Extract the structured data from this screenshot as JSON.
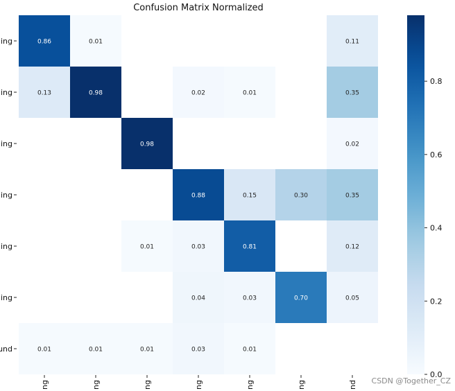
{
  "chart_data": {
    "type": "heatmap",
    "title": "Confusion Matrix Normalized",
    "row_labels": [
      "ing",
      "ing",
      "ing",
      "ing",
      "ing",
      "ing",
      "und"
    ],
    "col_labels": [
      "ng",
      "ng",
      "ng",
      "ng",
      "ng",
      "ng",
      "nd"
    ],
    "values": [
      [
        0.86,
        0.01,
        null,
        null,
        null,
        null,
        0.11
      ],
      [
        0.13,
        0.98,
        null,
        0.02,
        0.01,
        null,
        0.35
      ],
      [
        null,
        null,
        0.98,
        null,
        null,
        null,
        0.02
      ],
      [
        null,
        null,
        null,
        0.88,
        0.15,
        0.3,
        0.35
      ],
      [
        null,
        null,
        0.01,
        0.03,
        0.81,
        null,
        0.12
      ],
      [
        null,
        null,
        null,
        0.04,
        0.03,
        0.7,
        0.05
      ],
      [
        0.01,
        0.01,
        0.01,
        0.03,
        0.01,
        null,
        null
      ]
    ],
    "colormap": "Blues",
    "vmin": 0.0,
    "vmax": 0.98,
    "colorbar_ticks": [
      "0.0",
      "0.2",
      "0.4",
      "0.6",
      "0.8"
    ],
    "colorbar_tick_values": [
      0.0,
      0.2,
      0.4,
      0.6,
      0.8
    ]
  },
  "watermark": "CSDN @Together_CZ"
}
